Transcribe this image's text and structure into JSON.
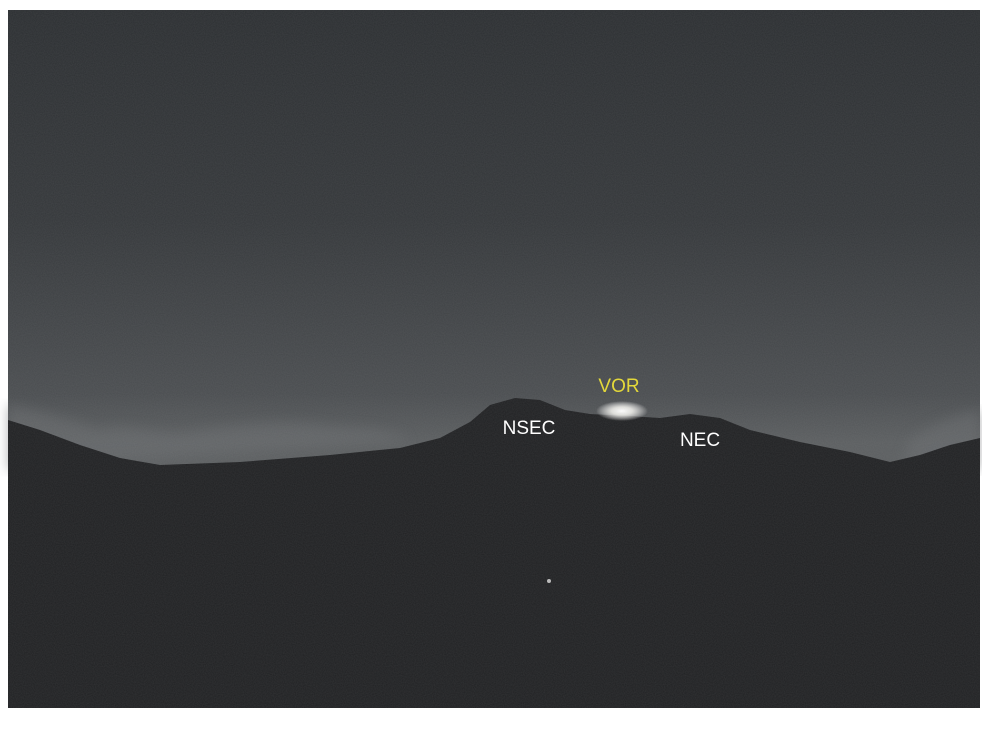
{
  "annotations": [
    {
      "text": "VOR"
    },
    {
      "text": "NSEC"
    },
    {
      "text": "NEC"
    }
  ]
}
